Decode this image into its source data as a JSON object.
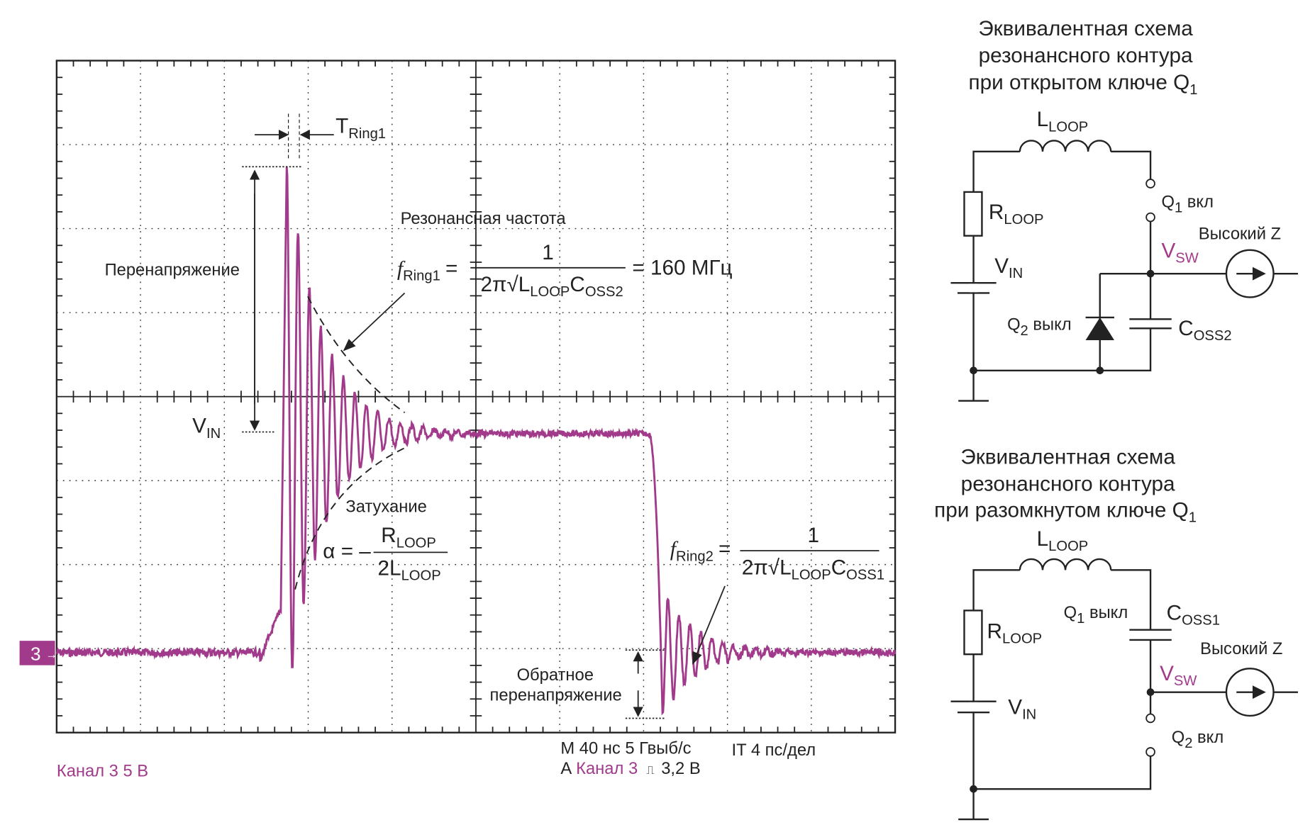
{
  "colors": {
    "trace": "#a23a8c",
    "text": "#222222"
  },
  "scope": {
    "channel_marker": "3",
    "channel_label": "Канал 3   5 В",
    "timebase": "M 40 нс 5 Гвыб/с",
    "jitter": "IT 4 пс/дел",
    "trigger_prefix": "A",
    "trigger_channel": "Канал 3",
    "trigger_slope": "⎍",
    "trigger_level": "3,2 В"
  },
  "annotations": {
    "t_ring1": {
      "main": "T",
      "sub": "Ring1"
    },
    "overvoltage": "Перенапряжение",
    "vin": {
      "main": "V",
      "sub": "IN"
    },
    "resonant_freq": "Резонансная частота",
    "f_ring1": {
      "f": "f",
      "sub": "Ring1",
      "eq": "=",
      "num": "1",
      "den_pre": "2π√L",
      "den_sub1": "LOOP",
      "den_c": "C",
      "den_sub2": "OSS2",
      "result": "= 160 МГц"
    },
    "damping": "Затухание",
    "alpha": {
      "lhs": "α = –",
      "num_main": "R",
      "num_sub": "LOOP",
      "den_main": "2L",
      "den_sub": "LOOP"
    },
    "f_ring2": {
      "f": "f",
      "sub": "Ring2",
      "eq": "=",
      "num": "1",
      "den_pre": "2π√L",
      "den_sub1": "LOOP",
      "den_c": "C",
      "den_sub2": "OSS1"
    },
    "reverse_overvoltage_1": "Обратное",
    "reverse_overvoltage_2": "перенапряжение"
  },
  "circuit_closed": {
    "title_1": "Эквивалентная схема",
    "title_2": "резонансного контура",
    "title_3": "при открытом ключе Q",
    "title_3_sub": "1",
    "l_loop": {
      "main": "L",
      "sub": "LOOP"
    },
    "r_loop": {
      "main": "R",
      "sub": "LOOP"
    },
    "vin": {
      "main": "V",
      "sub": "IN"
    },
    "q1": {
      "main": "Q",
      "sub": "1",
      "state": " вкл"
    },
    "q2": {
      "main": "Q",
      "sub": "2",
      "state": " выкл"
    },
    "vsw": {
      "main": "V",
      "sub": "SW"
    },
    "coss": {
      "main": "C",
      "sub": "OSS2"
    },
    "high_z": "Высокий Z"
  },
  "circuit_open": {
    "title_1": "Эквивалентная схема",
    "title_2": "резонансного контура",
    "title_3": "при разомкнутом ключе Q",
    "title_3_sub": "1",
    "l_loop": {
      "main": "L",
      "sub": "LOOP"
    },
    "r_loop": {
      "main": "R",
      "sub": "LOOP"
    },
    "vin": {
      "main": "V",
      "sub": "IN"
    },
    "q1": {
      "main": "Q",
      "sub": "1",
      "state": " выкл"
    },
    "q2": {
      "main": "Q",
      "sub": "2",
      "state": " вкл"
    },
    "vsw": {
      "main": "V",
      "sub": "SW"
    },
    "coss": {
      "main": "C",
      "sub": "OSS1"
    },
    "high_z": "Высокий Z"
  }
}
